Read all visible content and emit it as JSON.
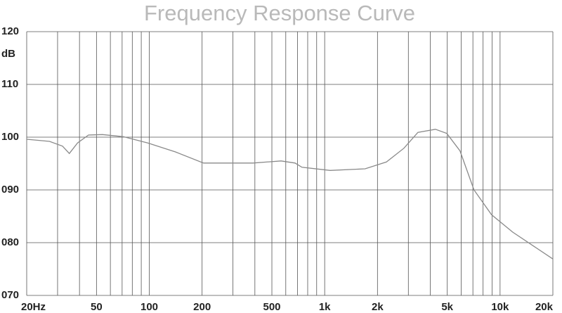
{
  "chart_data": {
    "type": "line",
    "title": "Frequency Response Curve",
    "y_unit": "dB",
    "log_x": true,
    "grid": true,
    "xlim": [
      20,
      20000
    ],
    "ylim": [
      70,
      120
    ],
    "xticks": [
      {
        "value": 20,
        "label": "20Hz"
      },
      50,
      100,
      200,
      500,
      {
        "value": 1000,
        "label": "1k"
      },
      {
        "value": 2000,
        "label": "2k"
      },
      {
        "value": 5000,
        "label": "5k"
      },
      {
        "value": 10000,
        "label": "10k"
      },
      {
        "value": 20000,
        "label": "20k"
      }
    ],
    "xminorticks": [
      30,
      40,
      60,
      70,
      80,
      90,
      300,
      400,
      600,
      700,
      800,
      900,
      3000,
      4000,
      6000,
      7000,
      8000,
      9000
    ],
    "yticks": [
      {
        "value": 70,
        "label": "070"
      },
      {
        "value": 80,
        "label": "080"
      },
      {
        "value": 90,
        "label": "090"
      },
      100,
      110,
      120
    ],
    "x": [
      20,
      27,
      32,
      35,
      39,
      45,
      54,
      71,
      98,
      141,
      204,
      390,
      564,
      678,
      742,
      1075,
      1700,
      2250,
      2830,
      3400,
      4280,
      4970,
      5910,
      7100,
      8940,
      11800,
      20000
    ],
    "series": [
      {
        "color": "#8a8a8a",
        "values": [
          99.6,
          99.2,
          98.3,
          96.9,
          98.9,
          100.4,
          100.5,
          100.1,
          98.9,
          97.2,
          95.1,
          95.1,
          95.5,
          95.1,
          94.3,
          93.7,
          94,
          95.3,
          97.9,
          100.9,
          101.5,
          100.7,
          97.4,
          90,
          85.3,
          82,
          76.9
        ]
      }
    ]
  }
}
